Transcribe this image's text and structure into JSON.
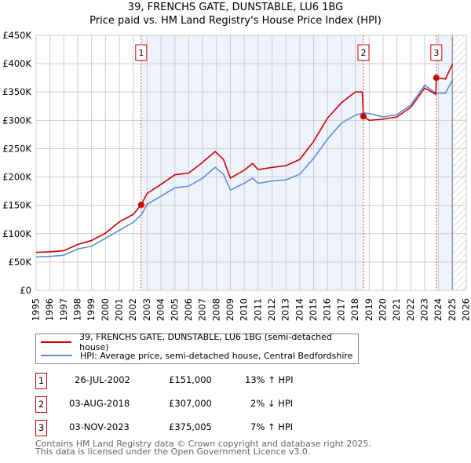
{
  "title": "39, FRENCHS GATE, DUNSTABLE, LU6 1BG",
  "subtitle": "Price paid vs. HM Land Registry's House Price Index (HPI)",
  "chart_data": {
    "type": "line",
    "title": "39, FRENCHS GATE, DUNSTABLE, LU6 1BG - Price paid vs. HM Land Registry's House Price Index (HPI)",
    "xlim": [
      1995,
      2026
    ],
    "ylim": [
      0,
      450000
    ],
    "x_ticks": [
      "1995",
      "1996",
      "1997",
      "1998",
      "1999",
      "2000",
      "2001",
      "2002",
      "2003",
      "2004",
      "2005",
      "2006",
      "2007",
      "2008",
      "2009",
      "2010",
      "2011",
      "2012",
      "2013",
      "2014",
      "2015",
      "2016",
      "2017",
      "2018",
      "2019",
      "2020",
      "2021",
      "2022",
      "2023",
      "2024",
      "2025",
      "2026"
    ],
    "y_ticks": [
      {
        "v": 0,
        "label": "£0"
      },
      {
        "v": 50000,
        "label": "£50K"
      },
      {
        "v": 100000,
        "label": "£100K"
      },
      {
        "v": 150000,
        "label": "£150K"
      },
      {
        "v": 200000,
        "label": "£200K"
      },
      {
        "v": 250000,
        "label": "£250K"
      },
      {
        "v": 300000,
        "label": "£300K"
      },
      {
        "v": 350000,
        "label": "£350K"
      },
      {
        "v": 400000,
        "label": "£400K"
      },
      {
        "v": 450000,
        "label": "£450K"
      }
    ],
    "grid": true,
    "series": [
      {
        "name": "39, FRENCHS GATE, DUNSTABLE, LU6 1BG (semi-detached house)",
        "color": "#cc0000",
        "x": [
          1995,
          1996,
          1997,
          1998,
          1999,
          2000,
          2001,
          2002,
          2002.57,
          2003,
          2004,
          2005,
          2006,
          2007,
          2007.9,
          2008.5,
          2009,
          2010,
          2010.6,
          2011,
          2012,
          2013,
          2014,
          2015,
          2016,
          2017,
          2018,
          2018.5,
          2018.59,
          2019,
          2020,
          2021,
          2022,
          2023,
          2023.8,
          2023.84,
          2024.5,
          2025
        ],
        "y": [
          67000,
          68000,
          70000,
          81000,
          88000,
          101000,
          121000,
          134000,
          151000,
          171000,
          187000,
          204000,
          207000,
          226000,
          245000,
          231000,
          198000,
          212000,
          224000,
          213000,
          217000,
          220000,
          231000,
          263000,
          304000,
          331000,
          350000,
          350000,
          307000,
          300000,
          302000,
          306000,
          323000,
          357000,
          346000,
          375005,
          373000,
          399000
        ]
      },
      {
        "name": "HPI: Average price, semi-detached house, Central Bedfordshire",
        "color": "#5b8fd4",
        "x": [
          1995,
          1996,
          1997,
          1998,
          1999,
          2000,
          2001,
          2002,
          2002.6,
          2003,
          2004,
          2005,
          2006,
          2007,
          2007.9,
          2008.5,
          2009,
          2010,
          2010.6,
          2011,
          2012,
          2013,
          2014,
          2015,
          2016,
          2017,
          2018,
          2018.6,
          2019,
          2020,
          2021,
          2022,
          2023,
          2023.8,
          2024.5,
          2025
        ],
        "y": [
          59000,
          60000,
          62000,
          73000,
          78000,
          92000,
          106000,
          120000,
          134000,
          152000,
          166000,
          181000,
          184000,
          198000,
          217000,
          205000,
          177000,
          189000,
          198000,
          189000,
          193000,
          195000,
          205000,
          233000,
          267000,
          295000,
          309000,
          313000,
          312000,
          306000,
          310000,
          327000,
          362000,
          348000,
          348000,
          371000
        ]
      }
    ],
    "sales": [
      {
        "id": "1",
        "x": 2002.57,
        "y": 151000
      },
      {
        "id": "2",
        "x": 2018.59,
        "y": 307000
      },
      {
        "id": "3",
        "x": 2023.84,
        "y": 375005
      }
    ],
    "shaded_ranges": [
      [
        2002.57,
        2018.59
      ],
      [
        2023.84,
        2025
      ]
    ],
    "forecast_hatch_from": 2025,
    "legend_position": "below"
  },
  "legend": {
    "red": "39, FRENCHS GATE, DUNSTABLE, LU6 1BG (semi-detached house)",
    "blue": "HPI: Average price, semi-detached house, Central Bedfordshire"
  },
  "transactions": [
    {
      "id": "1",
      "date": "26-JUL-2002",
      "price": "£151,000",
      "hpi": "13% ↑ HPI"
    },
    {
      "id": "2",
      "date": "03-AUG-2018",
      "price": "£307,000",
      "hpi": "2% ↓ HPI"
    },
    {
      "id": "3",
      "date": "03-NOV-2023",
      "price": "£375,005",
      "hpi": "7% ↑ HPI"
    }
  ],
  "footer": {
    "line1": "Contains HM Land Registry data © Crown copyright and database right 2025.",
    "line2": "This data is licensed under the Open Government Licence v3.0."
  }
}
